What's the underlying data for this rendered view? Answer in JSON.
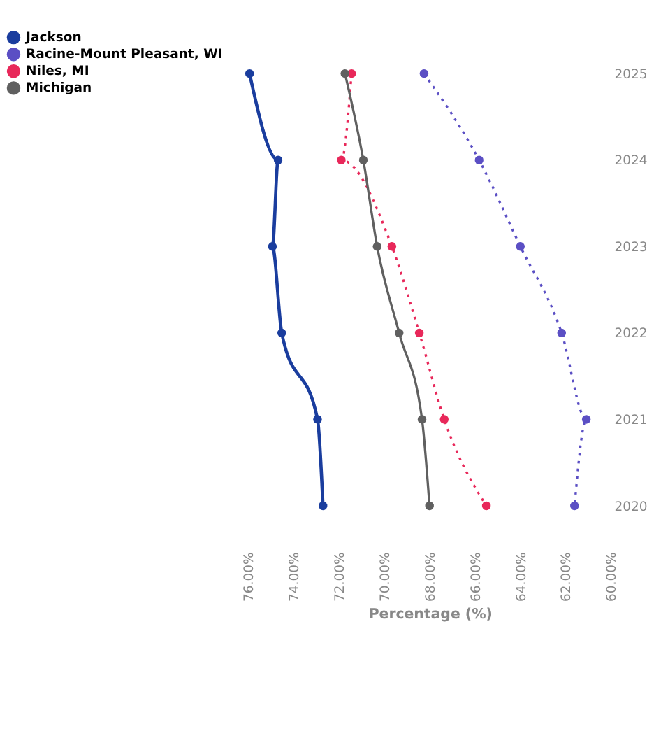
{
  "chart_data": {
    "type": "line",
    "orientation": "horizontal",
    "xlabel": "Percentage (%)",
    "categories": [
      "2025",
      "2024",
      "2023",
      "2022",
      "2021",
      "2020"
    ],
    "xlim": [
      76,
      60
    ],
    "xticks": [
      {
        "value": 76,
        "label": "76.00%"
      },
      {
        "value": 74,
        "label": "74.00%"
      },
      {
        "value": 72,
        "label": "72.00%"
      },
      {
        "value": 70,
        "label": "70.00%"
      },
      {
        "value": 68,
        "label": "68.00%"
      },
      {
        "value": 66,
        "label": "66.00%"
      },
      {
        "value": 64,
        "label": "64.00%"
      },
      {
        "value": 62,
        "label": "62.00%"
      },
      {
        "value": 60,
        "label": "60.00%"
      }
    ],
    "series": [
      {
        "name": "Jackson",
        "color": "#1a3d9e",
        "line_style": "solid",
        "values": [
          75.96,
          74.7,
          74.95,
          74.54,
          72.96,
          72.72
        ]
      },
      {
        "name": "Racine-Mount Pleasant, WI",
        "color": "#5b4fc4",
        "line_style": "dotted",
        "values": [
          68.26,
          65.83,
          64.01,
          62.19,
          61.1,
          61.62
        ]
      },
      {
        "name": "Niles, MI",
        "color": "#e8285a",
        "line_style": "dotted",
        "values": [
          71.46,
          71.91,
          69.68,
          68.47,
          67.37,
          65.51
        ]
      },
      {
        "name": "Michigan",
        "color": "#606060",
        "line_style": "solid",
        "values": [
          71.75,
          70.94,
          70.33,
          69.36,
          68.35,
          68.02
        ]
      }
    ],
    "marker": "circle",
    "grid": false,
    "legend": "left"
  }
}
